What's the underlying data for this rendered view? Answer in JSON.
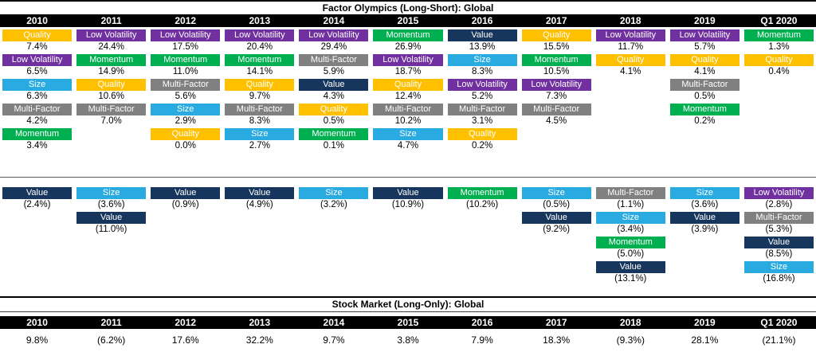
{
  "chart_data": {
    "type": "table",
    "title": "Factor Olympics (Long-Short): Global",
    "columns": [
      "2010",
      "2011",
      "2012",
      "2013",
      "2014",
      "2015",
      "2016",
      "2017",
      "2018",
      "2019",
      "Q1 2020"
    ],
    "colors": {
      "Quality": "#FFC000",
      "Low Volatility": "#7030A0",
      "Momentum": "#00B050",
      "Value": "#17365D",
      "Size": "#29ABE2",
      "Multi-Factor": "#808080"
    },
    "positive_by_year": [
      [
        {
          "factor": "Quality",
          "value": "7.4%"
        },
        {
          "factor": "Low Volatility",
          "value": "6.5%"
        },
        {
          "factor": "Size",
          "value": "6.3%"
        },
        {
          "factor": "Multi-Factor",
          "value": "4.2%"
        },
        {
          "factor": "Momentum",
          "value": "3.4%"
        }
      ],
      [
        {
          "factor": "Low Volatility",
          "value": "24.4%"
        },
        {
          "factor": "Momentum",
          "value": "14.9%"
        },
        {
          "factor": "Quality",
          "value": "10.6%"
        },
        {
          "factor": "Multi-Factor",
          "value": "7.0%"
        }
      ],
      [
        {
          "factor": "Low Volatility",
          "value": "17.5%"
        },
        {
          "factor": "Momentum",
          "value": "11.0%"
        },
        {
          "factor": "Multi-Factor",
          "value": "5.6%"
        },
        {
          "factor": "Size",
          "value": "2.9%"
        },
        {
          "factor": "Quality",
          "value": "0.0%"
        }
      ],
      [
        {
          "factor": "Low Volatility",
          "value": "20.4%"
        },
        {
          "factor": "Momentum",
          "value": "14.1%"
        },
        {
          "factor": "Quality",
          "value": "9.7%"
        },
        {
          "factor": "Multi-Factor",
          "value": "8.3%"
        },
        {
          "factor": "Size",
          "value": "2.7%"
        }
      ],
      [
        {
          "factor": "Low Volatility",
          "value": "29.4%"
        },
        {
          "factor": "Multi-Factor",
          "value": "5.9%"
        },
        {
          "factor": "Value",
          "value": "4.3%"
        },
        {
          "factor": "Quality",
          "value": "0.5%"
        },
        {
          "factor": "Momentum",
          "value": "0.1%"
        }
      ],
      [
        {
          "factor": "Momentum",
          "value": "26.9%"
        },
        {
          "factor": "Low Volatility",
          "value": "18.7%"
        },
        {
          "factor": "Quality",
          "value": "12.4%"
        },
        {
          "factor": "Multi-Factor",
          "value": "10.2%"
        },
        {
          "factor": "Size",
          "value": "4.7%"
        }
      ],
      [
        {
          "factor": "Value",
          "value": "13.9%"
        },
        {
          "factor": "Size",
          "value": "8.3%"
        },
        {
          "factor": "Low Volatility",
          "value": "5.2%"
        },
        {
          "factor": "Multi-Factor",
          "value": "3.1%"
        },
        {
          "factor": "Quality",
          "value": "0.2%"
        }
      ],
      [
        {
          "factor": "Quality",
          "value": "15.5%"
        },
        {
          "factor": "Momentum",
          "value": "10.5%"
        },
        {
          "factor": "Low Volatility",
          "value": "7.3%"
        },
        {
          "factor": "Multi-Factor",
          "value": "4.5%"
        }
      ],
      [
        {
          "factor": "Low Volatility",
          "value": "11.7%"
        },
        {
          "factor": "Quality",
          "value": "4.1%"
        }
      ],
      [
        {
          "factor": "Low Volatility",
          "value": "5.7%"
        },
        {
          "factor": "Quality",
          "value": "4.1%"
        },
        {
          "factor": "Multi-Factor",
          "value": "0.5%"
        },
        {
          "factor": "Momentum",
          "value": "0.2%"
        }
      ],
      [
        {
          "factor": "Momentum",
          "value": "1.3%"
        },
        {
          "factor": "Quality",
          "value": "0.4%"
        }
      ]
    ],
    "negative_by_year": [
      [
        {
          "factor": "Value",
          "value": "(2.4%)"
        }
      ],
      [
        {
          "factor": "Size",
          "value": "(3.6%)"
        },
        {
          "factor": "Value",
          "value": "(11.0%)"
        }
      ],
      [
        {
          "factor": "Value",
          "value": "(0.9%)"
        }
      ],
      [
        {
          "factor": "Value",
          "value": "(4.9%)"
        }
      ],
      [
        {
          "factor": "Size",
          "value": "(3.2%)"
        }
      ],
      [
        {
          "factor": "Value",
          "value": "(10.9%)"
        }
      ],
      [
        {
          "factor": "Momentum",
          "value": "(10.2%)"
        }
      ],
      [
        {
          "factor": "Size",
          "value": "(0.5%)"
        },
        {
          "factor": "Value",
          "value": "(9.2%)"
        }
      ],
      [
        {
          "factor": "Multi-Factor",
          "value": "(1.1%)"
        },
        {
          "factor": "Size",
          "value": "(3.4%)"
        },
        {
          "factor": "Momentum",
          "value": "(5.0%)"
        },
        {
          "factor": "Value",
          "value": "(13.1%)"
        }
      ],
      [
        {
          "factor": "Size",
          "value": "(3.6%)"
        },
        {
          "factor": "Value",
          "value": "(3.9%)"
        }
      ],
      [
        {
          "factor": "Low Volatility",
          "value": "(2.8%)"
        },
        {
          "factor": "Multi-Factor",
          "value": "(5.3%)"
        },
        {
          "factor": "Value",
          "value": "(8.5%)"
        },
        {
          "factor": "Size",
          "value": "(16.8%)"
        }
      ]
    ],
    "stock_market": {
      "title": "Stock Market (Long-Only): Global",
      "values": [
        "9.8%",
        "(6.2%)",
        "17.6%",
        "32.2%",
        "9.7%",
        "3.8%",
        "7.9%",
        "18.3%",
        "(9.3%)",
        "28.1%",
        "(21.1%)"
      ]
    }
  }
}
